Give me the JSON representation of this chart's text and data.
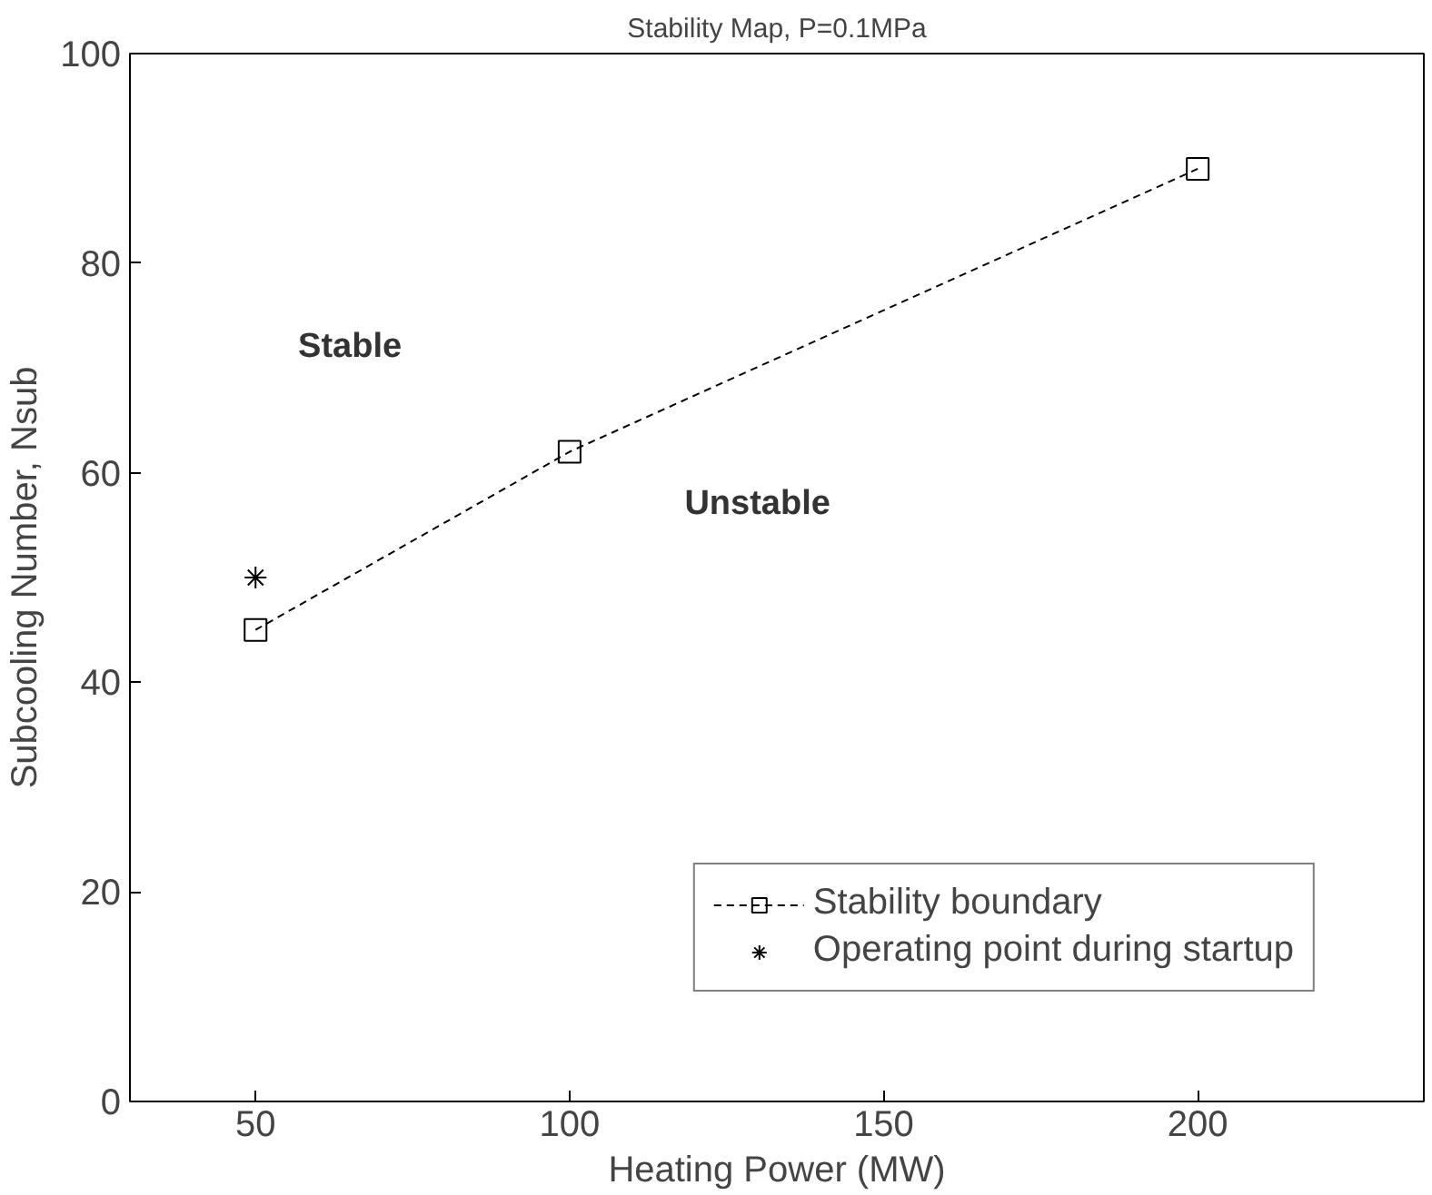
{
  "chart_data": {
    "type": "line",
    "title": "Stability Map, P=0.1MPa",
    "xlabel": "Heating Power (MW)",
    "ylabel": "Subcooling Number, Nsub",
    "xlim": [
      30,
      236
    ],
    "ylim": [
      0,
      100
    ],
    "xticks": [
      50,
      100,
      150,
      200
    ],
    "yticks": [
      0,
      20,
      40,
      60,
      80,
      100
    ],
    "grid": false,
    "legend": "bottom right",
    "series": [
      {
        "name": "Stability boundary",
        "color": "#000000",
        "x": [
          50,
          100,
          200
        ],
        "values": [
          45,
          62,
          89
        ],
        "marker": "square",
        "line_style": "dashed"
      },
      {
        "name": "Operating point during startup",
        "type": "scatter",
        "color": "#000000",
        "x": [
          50
        ],
        "values": [
          50
        ],
        "marker": "cross"
      }
    ],
    "annotations": [
      "Stable",
      "Unstable"
    ]
  }
}
